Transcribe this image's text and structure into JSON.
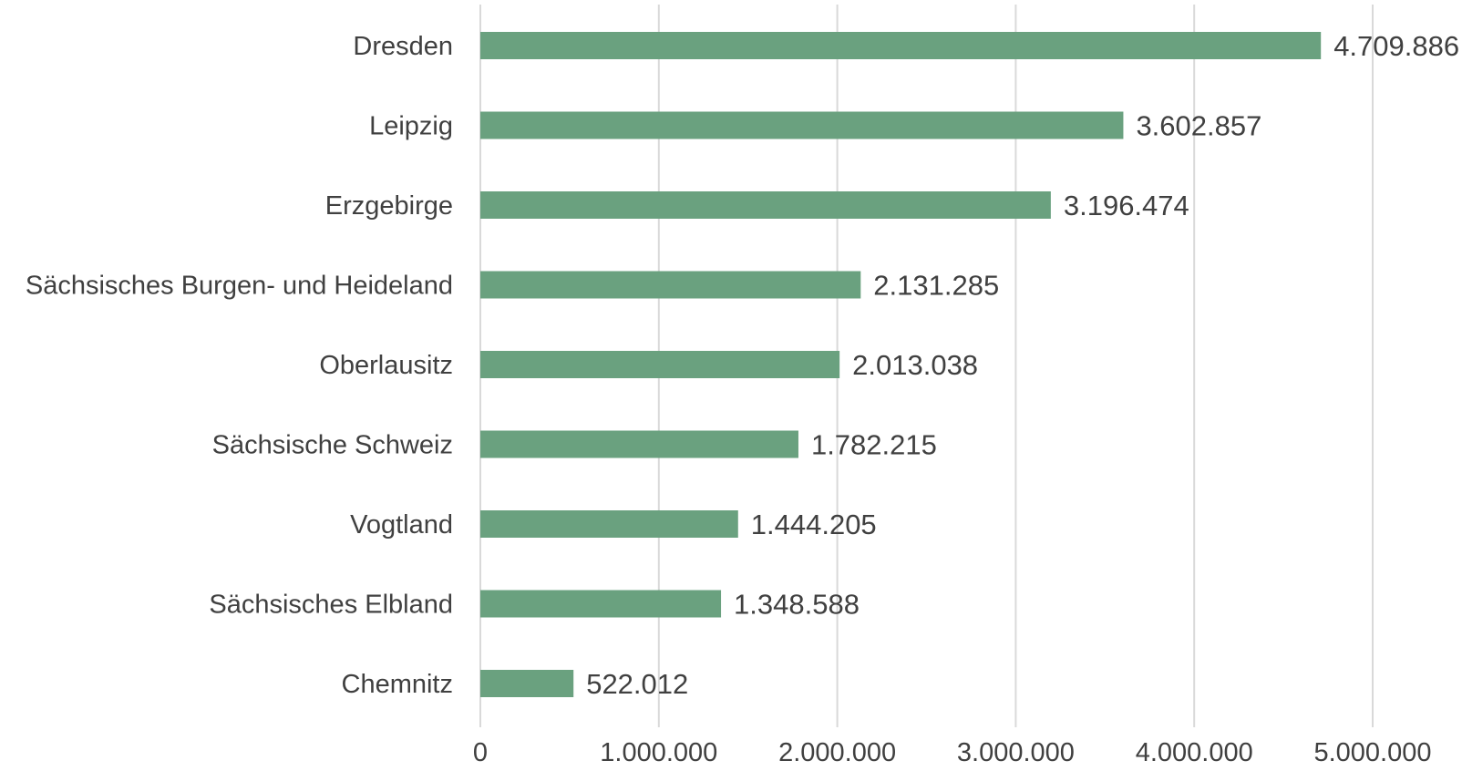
{
  "chart_data": {
    "type": "bar",
    "orientation": "horizontal",
    "categories": [
      "Dresden",
      "Leipzig",
      "Erzgebirge",
      "Sächsisches Burgen- und Heideland",
      "Oberlausitz",
      "Sächsische Schweiz",
      "Vogtland",
      "Sächsisches Elbland",
      "Chemnitz"
    ],
    "values": [
      4709886,
      3602857,
      3196474,
      2131285,
      2013038,
      1782215,
      1444205,
      1348588,
      522012
    ],
    "data_labels": [
      "4.709.886",
      "3.602.857",
      "3.196.474",
      "2.131.285",
      "2.013.038",
      "1.782.215",
      "1.444.205",
      "1.348.588",
      "522.012"
    ],
    "xlim": [
      0,
      5000000
    ],
    "x_ticks": [
      0,
      1000000,
      2000000,
      3000000,
      4000000,
      5000000
    ],
    "x_tick_labels": [
      "0",
      "1.000.000",
      "2.000.000",
      "3.000.000",
      "4.000.000",
      "5.000.000"
    ],
    "grid": true,
    "bar_color": "#6aa17f",
    "title": "",
    "xlabel": "",
    "ylabel": ""
  }
}
